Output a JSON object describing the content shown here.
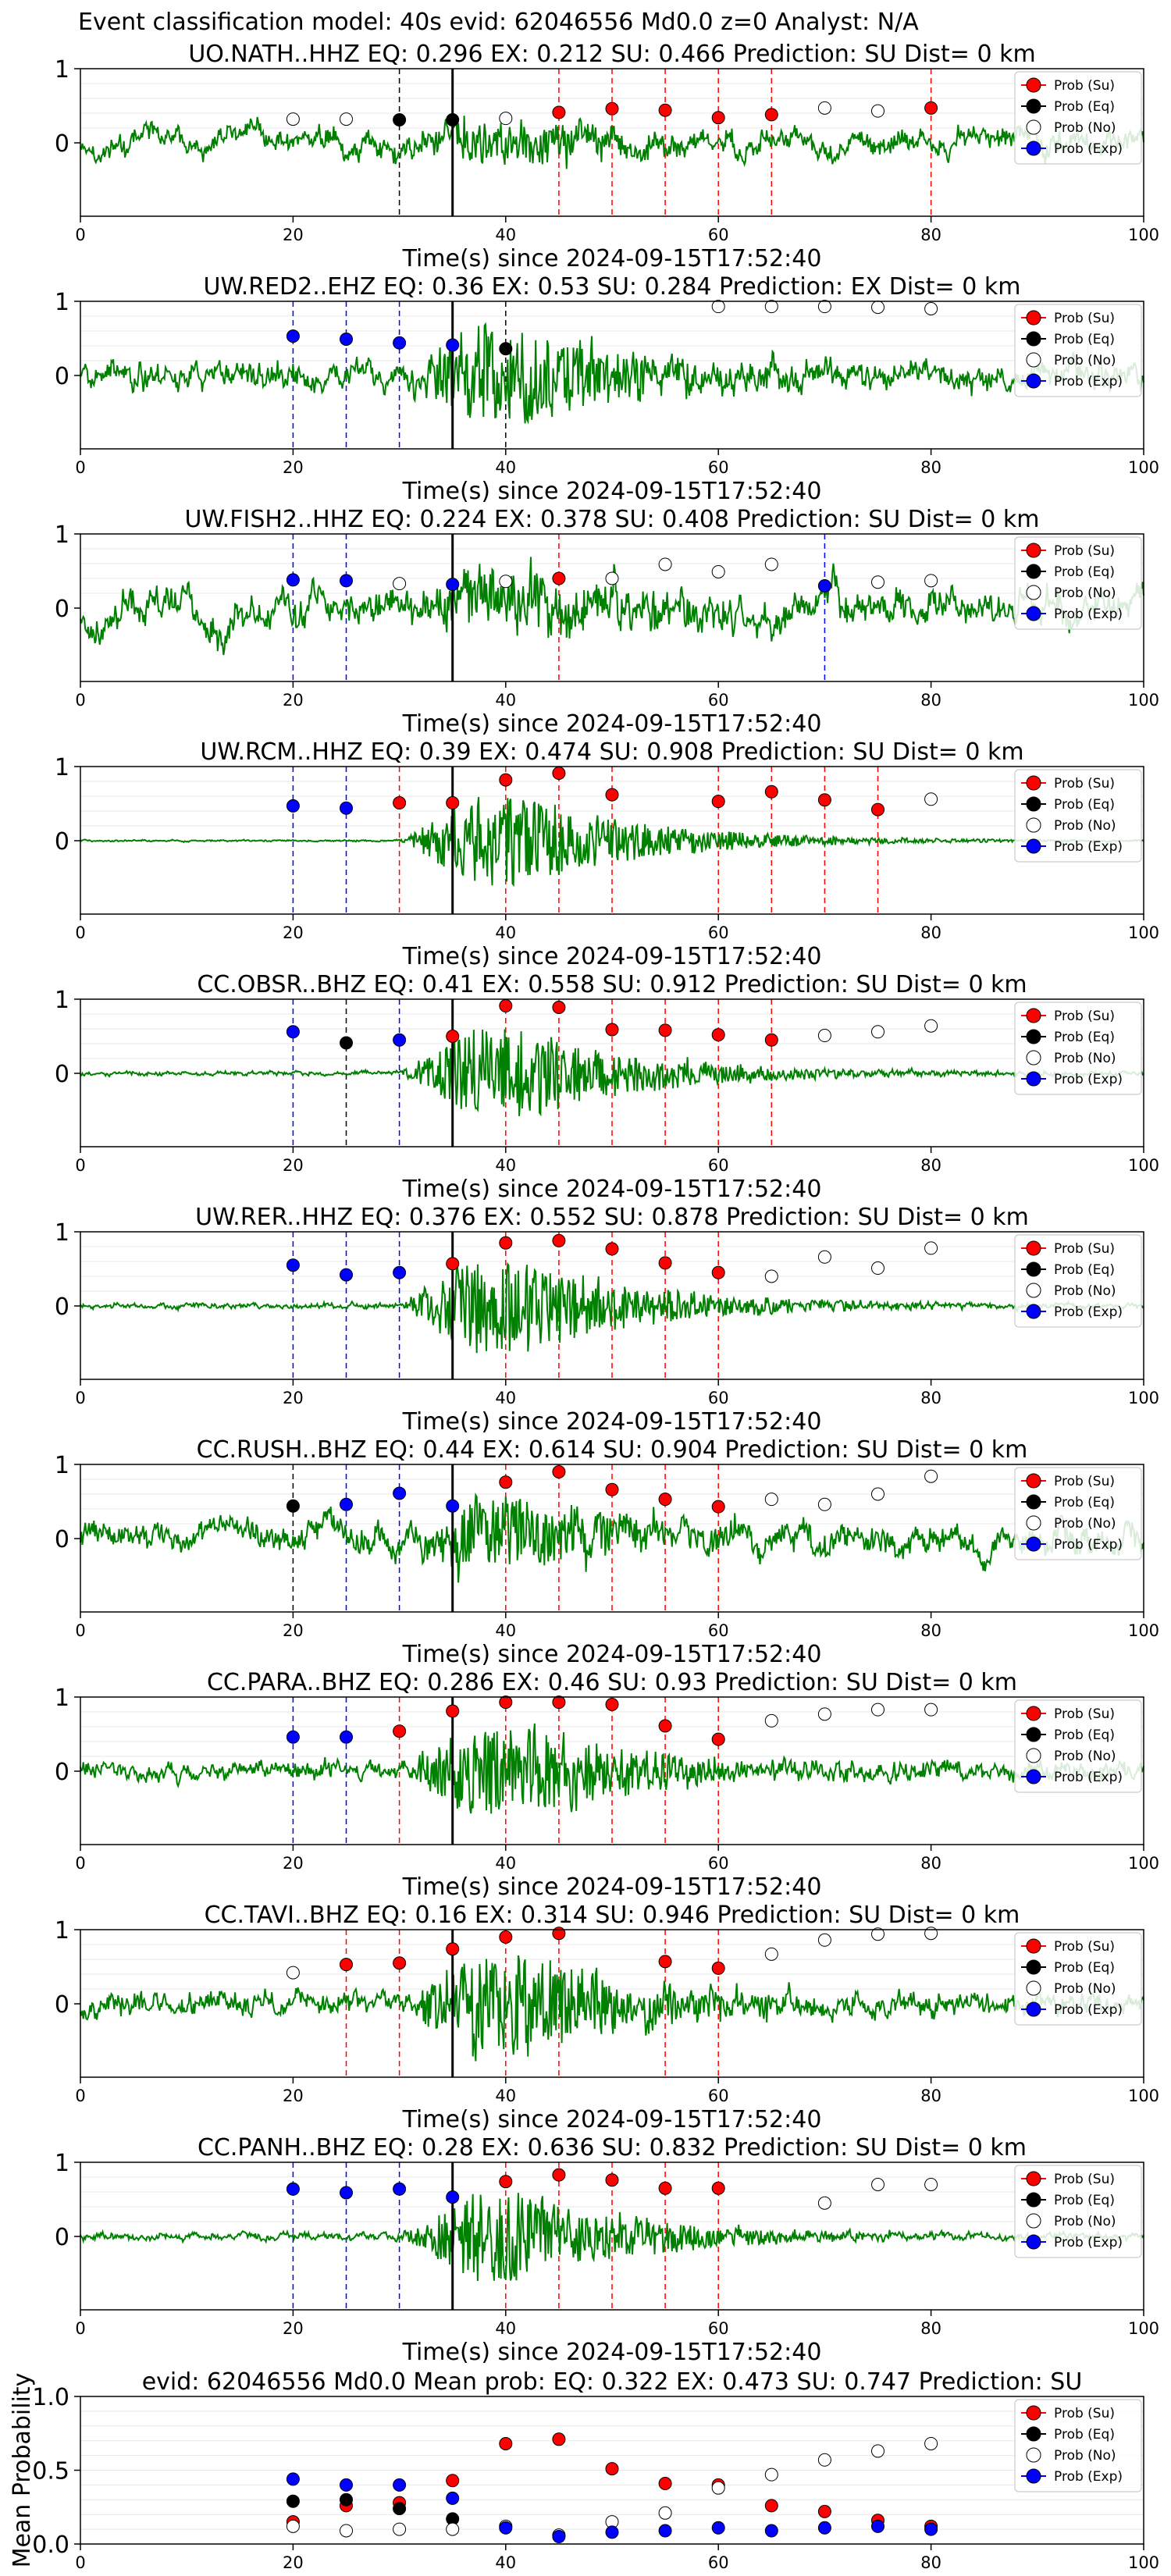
{
  "figure": {
    "suptitle": "Event classification model: 40s evid: 62046556 Md0.0 z=0 Analyst: N/A",
    "xlabel": "Time(s) since 2024-09-15T17:52:40",
    "xticks": [
      0,
      20,
      40,
      60,
      80,
      100
    ],
    "xlim": [
      0,
      100
    ],
    "colors": {
      "waveform": "#008000",
      "su": "#ff0000",
      "eq": "#000000",
      "no": "#ffffff",
      "exp": "#0000ff",
      "origin_line": "#000000"
    },
    "legend_labels": [
      "Prob (Su)",
      "Prob (Eq)",
      "Prob (No)",
      "Prob (Exp)"
    ],
    "legend_location": "upper right"
  },
  "chart_data": [
    {
      "type": "line",
      "title": "UO.NATH..HHZ   EQ: 0.296  EX: 0.212  SU: 0.466   Prediction: SU    Dist= 0 km",
      "yticks": [
        0,
        1
      ],
      "ylim": [
        -1,
        1
      ],
      "origin_time": 35,
      "wave": {
        "noise": 0.3,
        "signal": 0.25,
        "lowfreq": true,
        "seed": 11
      },
      "points": [
        {
          "t": 20,
          "cls": "no",
          "p": 0.32
        },
        {
          "t": 25,
          "cls": "no",
          "p": 0.32
        },
        {
          "t": 30,
          "cls": "eq",
          "p": 0.31
        },
        {
          "t": 35,
          "cls": "eq",
          "p": 0.31
        },
        {
          "t": 40,
          "cls": "no",
          "p": 0.33
        },
        {
          "t": 45,
          "cls": "su",
          "p": 0.41
        },
        {
          "t": 50,
          "cls": "su",
          "p": 0.46
        },
        {
          "t": 55,
          "cls": "su",
          "p": 0.44
        },
        {
          "t": 60,
          "cls": "su",
          "p": 0.34
        },
        {
          "t": 65,
          "cls": "su",
          "p": 0.38
        },
        {
          "t": 70,
          "cls": "no",
          "p": 0.47
        },
        {
          "t": 75,
          "cls": "no",
          "p": 0.43
        },
        {
          "t": 80,
          "cls": "su",
          "p": 0.47
        }
      ]
    },
    {
      "type": "line",
      "title": "UW.RED2..EHZ   EQ: 0.36  EX: 0.53  SU: 0.284   Prediction: EX    Dist= 0 km",
      "yticks": [
        0,
        1
      ],
      "ylim": [
        -1,
        1
      ],
      "origin_time": 35,
      "wave": {
        "noise": 0.3,
        "signal": 0.55,
        "lowfreq": false,
        "seed": 23
      },
      "points": [
        {
          "t": 20,
          "cls": "exp",
          "p": 0.53
        },
        {
          "t": 25,
          "cls": "exp",
          "p": 0.49
        },
        {
          "t": 30,
          "cls": "exp",
          "p": 0.44
        },
        {
          "t": 35,
          "cls": "exp",
          "p": 0.41
        },
        {
          "t": 40,
          "cls": "eq",
          "p": 0.36
        },
        {
          "t": 60,
          "cls": "no",
          "p": 0.93
        },
        {
          "t": 65,
          "cls": "no",
          "p": 0.93
        },
        {
          "t": 70,
          "cls": "no",
          "p": 0.93
        },
        {
          "t": 75,
          "cls": "no",
          "p": 0.92
        },
        {
          "t": 80,
          "cls": "no",
          "p": 0.9
        }
      ]
    },
    {
      "type": "line",
      "title": "UW.FISH2..HHZ   EQ: 0.224  EX: 0.378  SU: 0.408   Prediction: SU    Dist= 0 km",
      "yticks": [
        0,
        1
      ],
      "ylim": [
        -1,
        1
      ],
      "origin_time": 35,
      "wave": {
        "noise": 0.45,
        "signal": 0.35,
        "lowfreq": true,
        "seed": 37
      },
      "points": [
        {
          "t": 20,
          "cls": "exp",
          "p": 0.38
        },
        {
          "t": 25,
          "cls": "exp",
          "p": 0.37
        },
        {
          "t": 30,
          "cls": "no",
          "p": 0.33
        },
        {
          "t": 35,
          "cls": "exp",
          "p": 0.32
        },
        {
          "t": 40,
          "cls": "no",
          "p": 0.36
        },
        {
          "t": 45,
          "cls": "su",
          "p": 0.4
        },
        {
          "t": 50,
          "cls": "no",
          "p": 0.4
        },
        {
          "t": 55,
          "cls": "no",
          "p": 0.59
        },
        {
          "t": 60,
          "cls": "no",
          "p": 0.49
        },
        {
          "t": 65,
          "cls": "no",
          "p": 0.59
        },
        {
          "t": 70,
          "cls": "exp",
          "p": 0.3
        },
        {
          "t": 75,
          "cls": "no",
          "p": 0.35
        },
        {
          "t": 80,
          "cls": "no",
          "p": 0.37
        }
      ]
    },
    {
      "type": "line",
      "title": "UW.RCM..HHZ   EQ: 0.39  EX: 0.474  SU: 0.908   Prediction: SU    Dist= 0 km",
      "yticks": [
        0,
        1
      ],
      "ylim": [
        -1,
        1
      ],
      "origin_time": 35,
      "wave": {
        "noise": 0.02,
        "signal": 0.55,
        "lowfreq": false,
        "seed": 41
      },
      "points": [
        {
          "t": 20,
          "cls": "exp",
          "p": 0.47
        },
        {
          "t": 25,
          "cls": "exp",
          "p": 0.44
        },
        {
          "t": 30,
          "cls": "su",
          "p": 0.51
        },
        {
          "t": 35,
          "cls": "su",
          "p": 0.51
        },
        {
          "t": 40,
          "cls": "su",
          "p": 0.82
        },
        {
          "t": 45,
          "cls": "su",
          "p": 0.91
        },
        {
          "t": 50,
          "cls": "su",
          "p": 0.62
        },
        {
          "t": 60,
          "cls": "su",
          "p": 0.53
        },
        {
          "t": 65,
          "cls": "su",
          "p": 0.66
        },
        {
          "t": 70,
          "cls": "su",
          "p": 0.55
        },
        {
          "t": 75,
          "cls": "su",
          "p": 0.42
        },
        {
          "t": 80,
          "cls": "no",
          "p": 0.56
        }
      ]
    },
    {
      "type": "line",
      "title": "CC.OBSR..BHZ   EQ: 0.41  EX: 0.558  SU: 0.912   Prediction: SU    Dist= 0 km",
      "yticks": [
        0,
        1
      ],
      "ylim": [
        -1,
        1
      ],
      "origin_time": 35,
      "wave": {
        "noise": 0.05,
        "signal": 0.55,
        "lowfreq": false,
        "seed": 53
      },
      "points": [
        {
          "t": 20,
          "cls": "exp",
          "p": 0.56
        },
        {
          "t": 25,
          "cls": "eq",
          "p": 0.41
        },
        {
          "t": 30,
          "cls": "exp",
          "p": 0.45
        },
        {
          "t": 35,
          "cls": "su",
          "p": 0.5
        },
        {
          "t": 40,
          "cls": "su",
          "p": 0.91
        },
        {
          "t": 45,
          "cls": "su",
          "p": 0.89
        },
        {
          "t": 50,
          "cls": "su",
          "p": 0.59
        },
        {
          "t": 55,
          "cls": "su",
          "p": 0.58
        },
        {
          "t": 60,
          "cls": "su",
          "p": 0.52
        },
        {
          "t": 65,
          "cls": "su",
          "p": 0.45
        },
        {
          "t": 70,
          "cls": "no",
          "p": 0.51
        },
        {
          "t": 75,
          "cls": "no",
          "p": 0.56
        },
        {
          "t": 80,
          "cls": "no",
          "p": 0.64
        }
      ]
    },
    {
      "type": "line",
      "title": "UW.RER..HHZ   EQ: 0.376  EX: 0.552  SU: 0.878   Prediction: SU    Dist= 0 km",
      "yticks": [
        0,
        1
      ],
      "ylim": [
        -1,
        1
      ],
      "origin_time": 35,
      "wave": {
        "noise": 0.06,
        "signal": 0.6,
        "lowfreq": false,
        "seed": 61
      },
      "points": [
        {
          "t": 20,
          "cls": "exp",
          "p": 0.55
        },
        {
          "t": 25,
          "cls": "exp",
          "p": 0.42
        },
        {
          "t": 30,
          "cls": "exp",
          "p": 0.45
        },
        {
          "t": 35,
          "cls": "su",
          "p": 0.57
        },
        {
          "t": 40,
          "cls": "su",
          "p": 0.85
        },
        {
          "t": 45,
          "cls": "su",
          "p": 0.88
        },
        {
          "t": 50,
          "cls": "su",
          "p": 0.77
        },
        {
          "t": 55,
          "cls": "su",
          "p": 0.58
        },
        {
          "t": 60,
          "cls": "su",
          "p": 0.45
        },
        {
          "t": 65,
          "cls": "no",
          "p": 0.4
        },
        {
          "t": 70,
          "cls": "no",
          "p": 0.66
        },
        {
          "t": 75,
          "cls": "no",
          "p": 0.51
        },
        {
          "t": 80,
          "cls": "no",
          "p": 0.78
        }
      ]
    },
    {
      "type": "line",
      "title": "CC.RUSH..BHZ   EQ: 0.44  EX: 0.614  SU: 0.904   Prediction: SU    Dist= 0 km",
      "yticks": [
        0,
        1
      ],
      "ylim": [
        -1,
        1
      ],
      "origin_time": 35,
      "wave": {
        "noise": 0.35,
        "signal": 0.4,
        "lowfreq": true,
        "seed": 71
      },
      "points": [
        {
          "t": 20,
          "cls": "eq",
          "p": 0.44
        },
        {
          "t": 25,
          "cls": "exp",
          "p": 0.46
        },
        {
          "t": 30,
          "cls": "exp",
          "p": 0.61
        },
        {
          "t": 35,
          "cls": "exp",
          "p": 0.44
        },
        {
          "t": 40,
          "cls": "su",
          "p": 0.76
        },
        {
          "t": 45,
          "cls": "su",
          "p": 0.9
        },
        {
          "t": 50,
          "cls": "su",
          "p": 0.66
        },
        {
          "t": 55,
          "cls": "su",
          "p": 0.53
        },
        {
          "t": 60,
          "cls": "su",
          "p": 0.43
        },
        {
          "t": 65,
          "cls": "no",
          "p": 0.53
        },
        {
          "t": 70,
          "cls": "no",
          "p": 0.46
        },
        {
          "t": 75,
          "cls": "no",
          "p": 0.6
        },
        {
          "t": 80,
          "cls": "no",
          "p": 0.84
        }
      ]
    },
    {
      "type": "line",
      "title": "CC.PARA..BHZ   EQ: 0.286  EX: 0.46  SU: 0.93   Prediction: SU    Dist= 0 km",
      "yticks": [
        0,
        1
      ],
      "ylim": [
        -1,
        1
      ],
      "origin_time": 35,
      "wave": {
        "noise": 0.2,
        "signal": 0.55,
        "lowfreq": false,
        "seed": 83
      },
      "points": [
        {
          "t": 20,
          "cls": "exp",
          "p": 0.46
        },
        {
          "t": 25,
          "cls": "exp",
          "p": 0.46
        },
        {
          "t": 30,
          "cls": "su",
          "p": 0.54
        },
        {
          "t": 35,
          "cls": "su",
          "p": 0.81
        },
        {
          "t": 40,
          "cls": "su",
          "p": 0.93
        },
        {
          "t": 45,
          "cls": "su",
          "p": 0.93
        },
        {
          "t": 50,
          "cls": "su",
          "p": 0.9
        },
        {
          "t": 55,
          "cls": "su",
          "p": 0.61
        },
        {
          "t": 60,
          "cls": "su",
          "p": 0.43
        },
        {
          "t": 65,
          "cls": "no",
          "p": 0.68
        },
        {
          "t": 70,
          "cls": "no",
          "p": 0.77
        },
        {
          "t": 75,
          "cls": "no",
          "p": 0.83
        },
        {
          "t": 80,
          "cls": "no",
          "p": 0.83
        }
      ]
    },
    {
      "type": "line",
      "title": "CC.TAVI..BHZ   EQ: 0.16  EX: 0.314  SU: 0.946   Prediction: SU    Dist= 0 km",
      "yticks": [
        0,
        1
      ],
      "ylim": [
        -1,
        1
      ],
      "origin_time": 35,
      "wave": {
        "noise": 0.25,
        "signal": 0.6,
        "lowfreq": false,
        "seed": 97
      },
      "points": [
        {
          "t": 20,
          "cls": "no",
          "p": 0.42
        },
        {
          "t": 25,
          "cls": "su",
          "p": 0.53
        },
        {
          "t": 30,
          "cls": "su",
          "p": 0.55
        },
        {
          "t": 35,
          "cls": "su",
          "p": 0.74
        },
        {
          "t": 40,
          "cls": "su",
          "p": 0.9
        },
        {
          "t": 45,
          "cls": "su",
          "p": 0.95
        },
        {
          "t": 55,
          "cls": "su",
          "p": 0.57
        },
        {
          "t": 60,
          "cls": "su",
          "p": 0.48
        },
        {
          "t": 65,
          "cls": "no",
          "p": 0.67
        },
        {
          "t": 70,
          "cls": "no",
          "p": 0.86
        },
        {
          "t": 75,
          "cls": "no",
          "p": 0.94
        },
        {
          "t": 80,
          "cls": "no",
          "p": 0.95
        }
      ]
    },
    {
      "type": "line",
      "title": "CC.PANH..BHZ   EQ: 0.28  EX: 0.636  SU: 0.832   Prediction: SU    Dist= 0 km",
      "yticks": [
        0,
        1
      ],
      "ylim": [
        -1,
        1
      ],
      "origin_time": 35,
      "wave": {
        "noise": 0.08,
        "signal": 0.55,
        "lowfreq": false,
        "seed": 101
      },
      "points": [
        {
          "t": 20,
          "cls": "exp",
          "p": 0.64
        },
        {
          "t": 25,
          "cls": "exp",
          "p": 0.59
        },
        {
          "t": 30,
          "cls": "exp",
          "p": 0.64
        },
        {
          "t": 35,
          "cls": "exp",
          "p": 0.53
        },
        {
          "t": 40,
          "cls": "su",
          "p": 0.74
        },
        {
          "t": 45,
          "cls": "su",
          "p": 0.83
        },
        {
          "t": 50,
          "cls": "su",
          "p": 0.76
        },
        {
          "t": 55,
          "cls": "su",
          "p": 0.65
        },
        {
          "t": 60,
          "cls": "su",
          "p": 0.65
        },
        {
          "t": 70,
          "cls": "no",
          "p": 0.45
        },
        {
          "t": 75,
          "cls": "no",
          "p": 0.7
        },
        {
          "t": 80,
          "cls": "no",
          "p": 0.7
        }
      ]
    },
    {
      "type": "scatter",
      "title": "evid: 62046556  Md0.0   Mean prob:   EQ: 0.322  EX: 0.473  SU: 0.747   Prediction: SU",
      "ylabel": "Mean Probability",
      "ylim": [
        0,
        1
      ],
      "yticks": [
        "0.0",
        "0.5",
        "1.0"
      ],
      "x": [
        20,
        25,
        30,
        35,
        40,
        45,
        50,
        55,
        60,
        65,
        70,
        75,
        80
      ],
      "series": [
        {
          "name": "Prob (Su)",
          "values": [
            0.15,
            0.26,
            0.28,
            0.43,
            0.68,
            0.71,
            0.51,
            0.41,
            0.4,
            0.26,
            0.22,
            0.16,
            0.12
          ]
        },
        {
          "name": "Prob (Eq)",
          "values": [
            0.29,
            0.3,
            0.24,
            0.17,
            null,
            null,
            null,
            null,
            null,
            null,
            null,
            null,
            null
          ]
        },
        {
          "name": "Prob (No)",
          "values": [
            0.12,
            0.09,
            0.1,
            0.1,
            0.12,
            0.06,
            0.15,
            0.21,
            0.38,
            0.47,
            0.57,
            0.63,
            0.68
          ]
        },
        {
          "name": "Prob (Exp)",
          "values": [
            0.44,
            0.4,
            0.4,
            0.31,
            0.11,
            0.05,
            0.08,
            0.09,
            0.11,
            0.09,
            0.11,
            0.12,
            0.1
          ]
        }
      ]
    }
  ]
}
